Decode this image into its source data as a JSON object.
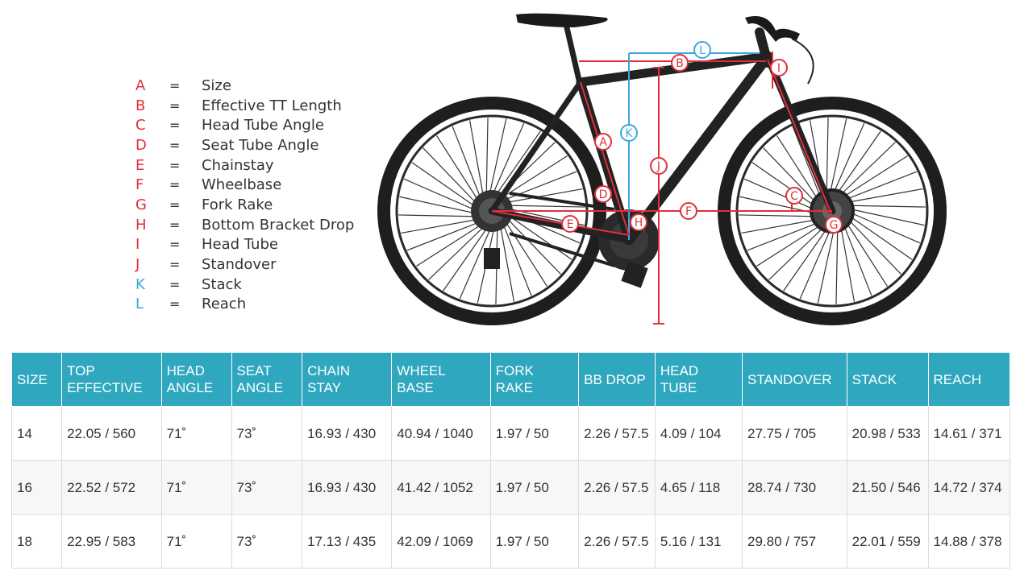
{
  "legend": [
    {
      "letter": "A",
      "eq": "=",
      "label": "Size",
      "color": "#e0303a"
    },
    {
      "letter": "B",
      "eq": "=",
      "label": "Effective TT Length",
      "color": "#e0303a"
    },
    {
      "letter": "C",
      "eq": "=",
      "label": "Head Tube Angle",
      "color": "#e0303a"
    },
    {
      "letter": "D",
      "eq": "=",
      "label": "Seat Tube Angle",
      "color": "#e0303a"
    },
    {
      "letter": "E",
      "eq": "=",
      "label": "Chainstay",
      "color": "#e0303a"
    },
    {
      "letter": "F",
      "eq": "=",
      "label": "Wheelbase",
      "color": "#e0303a"
    },
    {
      "letter": "G",
      "eq": "=",
      "label": "Fork Rake",
      "color": "#e0303a"
    },
    {
      "letter": "H",
      "eq": "=",
      "label": "Bottom Bracket Drop",
      "color": "#e0303a"
    },
    {
      "letter": "I",
      "eq": "=",
      "label": "Head Tube",
      "color": "#e0303a"
    },
    {
      "letter": "J",
      "eq": "=",
      "label": "Standover",
      "color": "#e0303a"
    },
    {
      "letter": "K",
      "eq": "=",
      "label": "Stack",
      "color": "#3aa7e0"
    },
    {
      "letter": "L",
      "eq": "=",
      "label": "Reach",
      "color": "#3aa7e0"
    }
  ],
  "diagram_markers": {
    "A": "A",
    "B": "B",
    "C": "C",
    "D": "D",
    "E": "E",
    "F": "F",
    "G": "G",
    "H": "H",
    "I": "I",
    "J": "J",
    "K": "K",
    "L": "L"
  },
  "table": {
    "header_color": "#2fa8bf",
    "headers": [
      [
        "SIZE"
      ],
      [
        "TOP",
        "EFFECTIVE"
      ],
      [
        "HEAD",
        "ANGLE"
      ],
      [
        "SEAT",
        "ANGLE"
      ],
      [
        "CHAIN STAY"
      ],
      [
        "WHEEL BASE"
      ],
      [
        "FORK RAKE"
      ],
      [
        "BB DROP"
      ],
      [
        "HEAD TUBE"
      ],
      [
        "STANDOVER"
      ],
      [
        "STACK"
      ],
      [
        "REACH"
      ]
    ],
    "rows": [
      [
        "14",
        "22.05 / 560",
        "71˚",
        "73˚",
        "16.93 / 430",
        "40.94 / 1040",
        "1.97 / 50",
        "2.26 / 57.5",
        "4.09 / 104",
        "27.75 / 705",
        "20.98 / 533",
        "14.61 / 371"
      ],
      [
        "16",
        "22.52 / 572",
        "71˚",
        "73˚",
        "16.93 / 430",
        "41.42 / 1052",
        "1.97 / 50",
        "2.26 / 57.5",
        "4.65 / 118",
        "28.74 / 730",
        "21.50 / 546",
        "14.72 / 374"
      ],
      [
        "18",
        "22.95 / 583",
        "71˚",
        "73˚",
        "17.13 / 435",
        "42.09 / 1069",
        "1.97 / 50",
        "2.26 / 57.5",
        "5.16 / 131",
        "29.80 / 757",
        "22.01 / 559",
        "14.88 / 378"
      ]
    ]
  }
}
